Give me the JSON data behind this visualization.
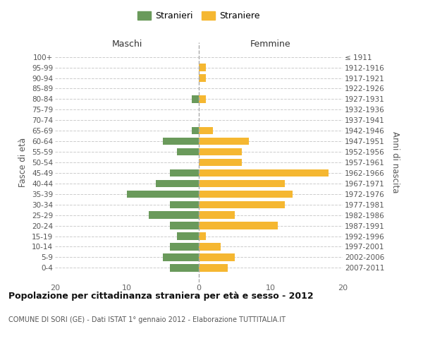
{
  "age_groups": [
    "100+",
    "95-99",
    "90-94",
    "85-89",
    "80-84",
    "75-79",
    "70-74",
    "65-69",
    "60-64",
    "55-59",
    "50-54",
    "45-49",
    "40-44",
    "35-39",
    "30-34",
    "25-29",
    "20-24",
    "15-19",
    "10-14",
    "5-9",
    "0-4"
  ],
  "birth_years": [
    "≤ 1911",
    "1912-1916",
    "1917-1921",
    "1922-1926",
    "1927-1931",
    "1932-1936",
    "1937-1941",
    "1942-1946",
    "1947-1951",
    "1952-1956",
    "1957-1961",
    "1962-1966",
    "1967-1971",
    "1972-1976",
    "1977-1981",
    "1982-1986",
    "1987-1991",
    "1992-1996",
    "1997-2001",
    "2002-2006",
    "2007-2011"
  ],
  "maschi": [
    0,
    0,
    0,
    0,
    1,
    0,
    0,
    1,
    5,
    3,
    0,
    4,
    6,
    10,
    4,
    7,
    4,
    3,
    4,
    5,
    4
  ],
  "femmine": [
    0,
    1,
    1,
    0,
    1,
    0,
    0,
    2,
    7,
    6,
    6,
    18,
    12,
    13,
    12,
    5,
    11,
    1,
    3,
    5,
    4
  ],
  "maschi_color": "#6a9a5b",
  "femmine_color": "#f5b731",
  "background_color": "#ffffff",
  "grid_color": "#cccccc",
  "title": "Popolazione per cittadinanza straniera per età e sesso - 2012",
  "subtitle": "COMUNE DI SORI (GE) - Dati ISTAT 1° gennaio 2012 - Elaborazione TUTTITALIA.IT",
  "ylabel_left": "Fasce di età",
  "ylabel_right": "Anni di nascita",
  "xlabel_left": "Maschi",
  "xlabel_right": "Femmine",
  "legend_stranieri": "Stranieri",
  "legend_straniere": "Straniere",
  "xlim": 20,
  "bar_height": 0.7
}
